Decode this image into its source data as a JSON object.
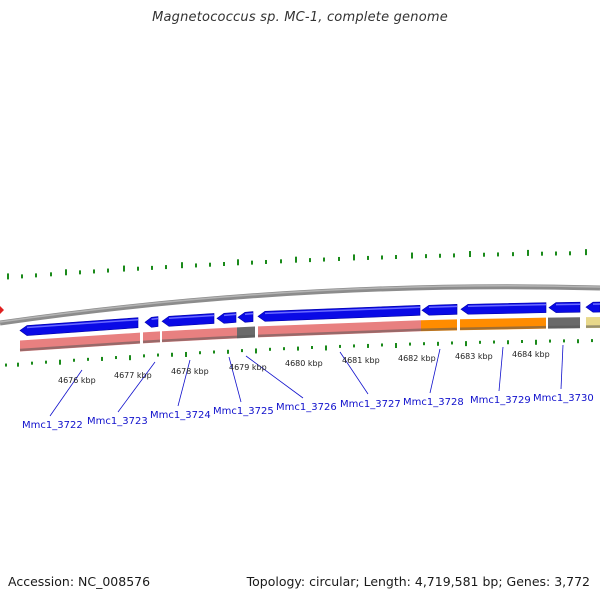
{
  "title": "Magnetococcus sp. MC-1, complete genome",
  "footer": {
    "accession": "Accession: NC_008576",
    "stats": "Topology: circular; Length: 4,719,581 bp; Genes: 3,772"
  },
  "kbp_labels": [
    "4676 kbp",
    "4677 kbp",
    "4678 kbp",
    "4679 kbp",
    "4680 kbp",
    "4681 kbp",
    "4682 kbp",
    "4683 kbp",
    "4684 kbp"
  ],
  "genes": [
    "Mmc1_3722",
    "Mmc1_3723",
    "Mmc1_3724",
    "Mmc1_3725",
    "Mmc1_3726",
    "Mmc1_3727",
    "Mmc1_3728",
    "Mmc1_3729",
    "Mmc1_3730"
  ],
  "colors": {
    "gene_arrow": "#0a0ae6",
    "cog_pink": "#e88080",
    "cog_orange": "#ff8c00",
    "cog_gray": "#6a6a6a",
    "cog_khaki": "#e8d88a",
    "backbone": "#8c8c8c",
    "tick_green": "#1a8a1a",
    "label_blue": "#1010cc"
  }
}
